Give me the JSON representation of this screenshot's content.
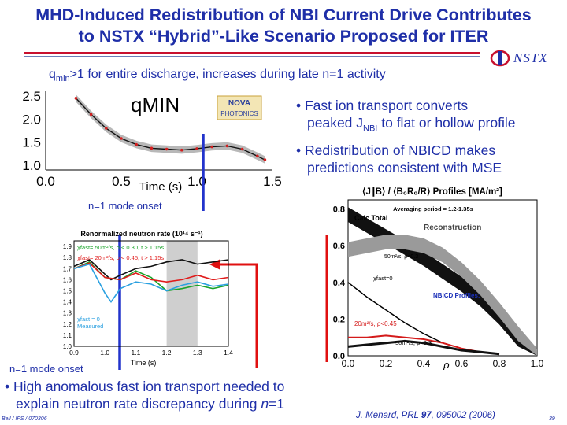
{
  "slide": {
    "title_line1": "MHD-Induced Redistribution of NBI Current Drive Contributes",
    "title_line2": "to NSTX “Hybrid”-Like Scenario Proposed for ITER",
    "logo_text": "NSTX",
    "qmin_note": {
      "q": "q",
      "sub": "min",
      "rest": ">1 for entire discharge, increases during late n=1 activity"
    },
    "bullets": [
      {
        "prefix": "• Fast ion transport converts",
        "line2_a": "peaked J",
        "line2_sub": "NBI",
        "line2_b": " to flat or hollow profile"
      },
      {
        "line1": "• Redistribution of NBICD makes",
        "line2": "predictions consistent with MSE"
      },
      {
        "line1": "• High anomalous fast ion transport needed to",
        "line2_a": "explain neutron rate discrepancy during ",
        "line2_n": "n",
        "line2_b": "=1"
      }
    ],
    "onset_label_top": "n=1 mode onset",
    "onset_label_bottom": "n=1 mode onset",
    "citation": {
      "prefix": "J. Menard,  PRL ",
      "vol": "97",
      "rest": ", 095002 (2006)"
    },
    "footer_left": "Bell / IFS / 070306",
    "page_number": "39",
    "colors": {
      "title": "#1f2fa8",
      "accent_red": "#c8102e",
      "onset_line": "#2233cc",
      "arrow": "#e01010"
    }
  },
  "chart_data": [
    {
      "type": "scatter",
      "title": "qMIN",
      "xlabel": "Time (s)",
      "ylabel": "",
      "xlim": [
        0.0,
        1.5
      ],
      "ylim": [
        0.9,
        2.6
      ],
      "x_ticks": [
        "0.0",
        "0.5",
        "1.0",
        "1.5"
      ],
      "y_ticks": [
        "1.0",
        "1.5",
        "2.0",
        "2.5"
      ],
      "series": [
        {
          "x": [
            0.2,
            0.3,
            0.4,
            0.5,
            0.6,
            0.7,
            0.8,
            0.9,
            1.0,
            1.1,
            1.2,
            1.3,
            1.4,
            1.45
          ],
          "values": [
            2.45,
            2.1,
            1.8,
            1.58,
            1.45,
            1.37,
            1.35,
            1.33,
            1.36,
            1.4,
            1.42,
            1.35,
            1.2,
            1.12
          ]
        }
      ],
      "logo_text": [
        "NOVA",
        "PHOTONICS"
      ]
    },
    {
      "type": "line",
      "title": "Renormalized neutron rate (10¹⁴ s⁻¹)",
      "xlabel": "Time (s)",
      "x_ticks": [
        "0.9",
        "1.0",
        "1.1",
        "1.2",
        "1.3",
        "1.4"
      ],
      "y_ticks": [
        "1.0",
        "1.1",
        "1.2",
        "1.3",
        "1.4",
        "1.5",
        "1.6",
        "1.7",
        "1.8",
        "1.9"
      ],
      "xlim": [
        0.9,
        1.4
      ],
      "ylim": [
        1.0,
        1.95
      ],
      "shaded_x": [
        1.2,
        1.3
      ],
      "legend": [
        "χfast= 50m²/s, ρ < 0.30, t > 1.15s",
        "χfast= 20m²/s, ρ < 0.45, t > 1.15s",
        "χfast = 0",
        "Measured"
      ],
      "series": [
        {
          "name": "χfast = 0",
          "x": [
            0.9,
            0.95,
            1.0,
            1.02,
            1.05,
            1.1,
            1.15,
            1.2,
            1.25,
            1.3,
            1.35,
            1.4
          ],
          "values": [
            1.72,
            1.78,
            1.65,
            1.6,
            1.64,
            1.7,
            1.72,
            1.76,
            1.78,
            1.74,
            1.76,
            1.78
          ]
        },
        {
          "name": "χfast= 50m²/s",
          "x": [
            0.9,
            0.95,
            1.0,
            1.05,
            1.1,
            1.15,
            1.2,
            1.25,
            1.3,
            1.35,
            1.4
          ],
          "values": [
            1.7,
            1.76,
            1.62,
            1.6,
            1.68,
            1.62,
            1.5,
            1.52,
            1.55,
            1.52,
            1.55
          ]
        },
        {
          "name": "χfast= 20m²/s",
          "x": [
            0.9,
            0.95,
            1.0,
            1.05,
            1.1,
            1.15,
            1.2,
            1.25,
            1.3,
            1.35,
            1.4
          ],
          "values": [
            1.7,
            1.75,
            1.62,
            1.6,
            1.66,
            1.6,
            1.58,
            1.6,
            1.64,
            1.6,
            1.62
          ]
        },
        {
          "name": "Measured",
          "x": [
            0.9,
            0.95,
            1.0,
            1.02,
            1.05,
            1.1,
            1.15,
            1.2,
            1.25,
            1.3,
            1.35,
            1.4
          ],
          "values": [
            1.7,
            1.74,
            1.48,
            1.4,
            1.52,
            1.58,
            1.56,
            1.5,
            1.55,
            1.58,
            1.54,
            1.56
          ]
        }
      ]
    },
    {
      "type": "line",
      "title": "⟨J∥B⟩ / ⟨B₀R₀/R⟩ Profiles [MA/m²]",
      "subtitle": "Averaging period = 1.2-1.35s",
      "xlabel": "ρ",
      "x_ticks": [
        "0.0",
        "0.2",
        "0.4",
        "0.6",
        "0.8",
        "1.0"
      ],
      "y_ticks": [
        "0.0",
        "0.2",
        "0.4",
        "0.6",
        "0.8"
      ],
      "xlim": [
        0.0,
        1.0
      ],
      "ylim": [
        0.0,
        0.85
      ],
      "annotations": [
        "Calc Total",
        "Reconstruction",
        "50m²/s, ρ<0.3",
        "χfast=0",
        "NBICD Profiles:",
        "20m²/s, ρ<0.45",
        "50m²/s, ρ<0.3"
      ],
      "series": [
        {
          "name": "Calc Total",
          "x": [
            0.0,
            0.1,
            0.2,
            0.3,
            0.4,
            0.5,
            0.6,
            0.7,
            0.8,
            0.9,
            1.0
          ],
          "values": [
            0.78,
            0.72,
            0.66,
            0.6,
            0.54,
            0.47,
            0.4,
            0.32,
            0.22,
            0.1,
            0.0
          ]
        },
        {
          "name": "Reconstruction",
          "x": [
            0.0,
            0.1,
            0.2,
            0.3,
            0.4,
            0.5,
            0.6,
            0.7,
            0.8,
            0.9,
            1.0
          ],
          "values": [
            0.58,
            0.6,
            0.62,
            0.62,
            0.6,
            0.55,
            0.47,
            0.37,
            0.25,
            0.12,
            0.0
          ]
        },
        {
          "name": "χfast=0",
          "x": [
            0.0,
            0.1,
            0.2,
            0.3,
            0.4,
            0.5,
            0.6,
            0.7,
            0.8
          ],
          "values": [
            0.4,
            0.32,
            0.25,
            0.18,
            0.12,
            0.07,
            0.04,
            0.02,
            0.01
          ]
        },
        {
          "name": "20m²/s, ρ<0.45",
          "x": [
            0.0,
            0.1,
            0.2,
            0.3,
            0.4,
            0.5,
            0.6,
            0.7,
            0.8
          ],
          "values": [
            0.1,
            0.1,
            0.11,
            0.1,
            0.09,
            0.07,
            0.04,
            0.02,
            0.01
          ]
        },
        {
          "name": "50m²/s, ρ<0.3",
          "x": [
            0.0,
            0.1,
            0.2,
            0.3,
            0.4,
            0.5,
            0.6,
            0.7,
            0.8
          ],
          "values": [
            0.05,
            0.06,
            0.07,
            0.08,
            0.07,
            0.05,
            0.03,
            0.02,
            0.01
          ]
        }
      ]
    }
  ]
}
